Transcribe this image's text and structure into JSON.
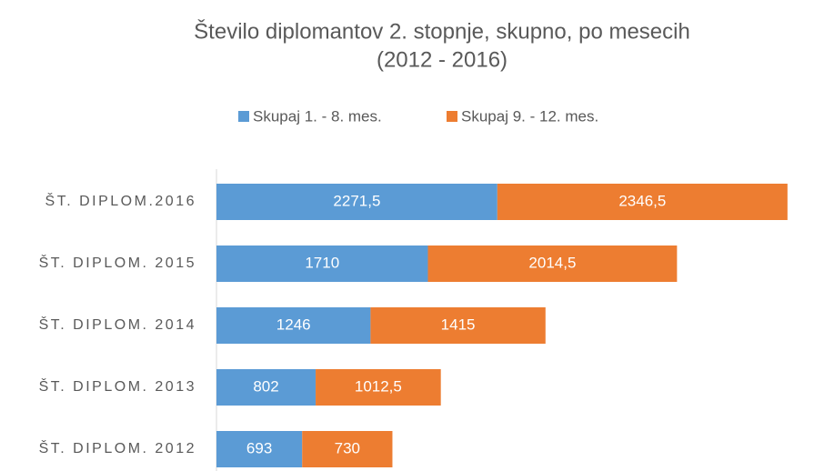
{
  "chart_data": {
    "type": "stacked-barh",
    "title": [
      "Število diplomantov 2. stopnje, skupno, po mesecih",
      "(2012 - 2016)"
    ],
    "categories": [
      "ŠT. DIPLOM.2016",
      "ŠT. DIPLOM. 2015",
      "ŠT. DIPLOM. 2014",
      "ŠT. DIPLOM. 2013",
      "ŠT. DIPLOM. 2012"
    ],
    "series": [
      {
        "name": "Skupaj 1. - 8. mes.",
        "color": "#5b9bd5",
        "values": [
          2271.5,
          1710,
          1246,
          802,
          693
        ],
        "value_labels": [
          "2271,5",
          "1710",
          "1246",
          "802",
          "693"
        ]
      },
      {
        "name": "Skupaj 9. - 12. mes.",
        "color": "#ed7d31",
        "values": [
          2346.5,
          2014.5,
          1415,
          1012.5,
          730
        ],
        "value_labels": [
          "2346,5",
          "2014,5",
          "1415",
          "1012,5",
          "730"
        ]
      }
    ],
    "xlim": [
      0,
      4700
    ],
    "legend": "top"
  }
}
